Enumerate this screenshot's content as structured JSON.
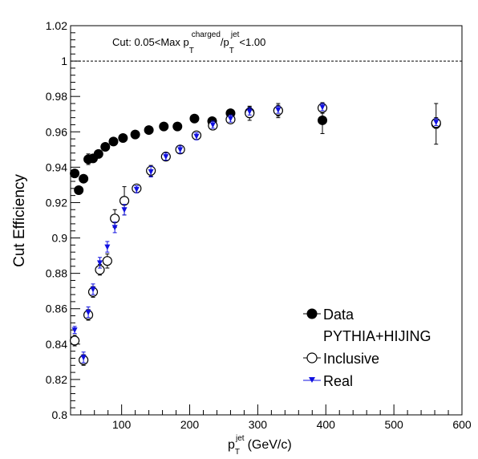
{
  "chart_data": {
    "type": "scatter",
    "xlabel": {
      "main": "p",
      "sup": "jet",
      "sub": "T",
      "units": "(GeV/c)"
    },
    "ylabel": "Cut Efficiency",
    "xlim": [
      25,
      600
    ],
    "ylim": [
      0.8,
      1.02
    ],
    "x_ticks": [
      100,
      200,
      300,
      400,
      500,
      600
    ],
    "y_ticks": [
      0.8,
      0.82,
      0.84,
      0.86,
      0.88,
      0.9,
      0.92,
      0.94,
      0.96,
      0.98,
      1,
      1.02
    ],
    "reference_line": {
      "y": 1.0,
      "style": "dashed"
    },
    "annotation": {
      "prefix": "Cut: 0.05<Max p",
      "sup1": "charged",
      "sub1": "T",
      "slash": "/p",
      "sup2": "jet",
      "sub2": "T",
      "suffix": "<1.00"
    },
    "legend": {
      "placement": "bottom-right",
      "entries": [
        {
          "label": "Data",
          "marker": "filled-circle"
        },
        {
          "label": "PYTHIA+HIJING",
          "marker": "none"
        },
        {
          "label": "Inclusive",
          "marker": "open-circle"
        },
        {
          "label": "Real",
          "marker": "triangle-down"
        }
      ]
    },
    "series": [
      {
        "name": "Data",
        "marker": "filled-circle",
        "color": "#000000",
        "points": [
          {
            "x": 31,
            "y": 0.9365,
            "err": 0.002
          },
          {
            "x": 37,
            "y": 0.927,
            "err": 0.002
          },
          {
            "x": 44,
            "y": 0.9335,
            "err": 0.002
          },
          {
            "x": 51,
            "y": 0.9445,
            "err": 0.003
          },
          {
            "x": 58,
            "y": 0.945,
            "err": 0.002
          },
          {
            "x": 66,
            "y": 0.9475,
            "err": 0.002
          },
          {
            "x": 76,
            "y": 0.9515,
            "err": 0.002
          },
          {
            "x": 88,
            "y": 0.9545,
            "err": 0.002
          },
          {
            "x": 102,
            "y": 0.9565,
            "err": 0.002
          },
          {
            "x": 120,
            "y": 0.9585,
            "err": 0.002
          },
          {
            "x": 140,
            "y": 0.961,
            "err": 0.002
          },
          {
            "x": 162,
            "y": 0.963,
            "err": 0.002
          },
          {
            "x": 182,
            "y": 0.963,
            "err": 0.002
          },
          {
            "x": 207,
            "y": 0.9675,
            "err": 0.002
          },
          {
            "x": 233,
            "y": 0.966,
            "err": 0.002
          },
          {
            "x": 260,
            "y": 0.9705,
            "err": 0.002
          },
          {
            "x": 288,
            "y": 0.971,
            "err": 0.003
          },
          {
            "x": 330,
            "y": 0.972,
            "err": 0.003
          },
          {
            "x": 395,
            "y": 0.9665,
            "err": 0.0075
          },
          {
            "x": 562,
            "y": 0.9645,
            "err": 0.0115
          }
        ]
      },
      {
        "name": "Inclusive",
        "marker": "open-circle",
        "color": "#000000",
        "points": [
          {
            "x": 31,
            "y": 0.842,
            "err": 0.003
          },
          {
            "x": 44,
            "y": 0.831,
            "err": 0.003
          },
          {
            "x": 51,
            "y": 0.8565,
            "err": 0.003
          },
          {
            "x": 58,
            "y": 0.8695,
            "err": 0.003
          },
          {
            "x": 68,
            "y": 0.882,
            "err": 0.003
          },
          {
            "x": 79,
            "y": 0.887,
            "err": 0.004
          },
          {
            "x": 90,
            "y": 0.911,
            "err": 0.005
          },
          {
            "x": 104,
            "y": 0.921,
            "err": 0.008
          },
          {
            "x": 122,
            "y": 0.928,
            "err": 0.002
          },
          {
            "x": 143,
            "y": 0.938,
            "err": 0.003
          },
          {
            "x": 165,
            "y": 0.946,
            "err": 0.002
          },
          {
            "x": 186,
            "y": 0.95,
            "err": 0.002
          },
          {
            "x": 210,
            "y": 0.958,
            "err": 0.002
          },
          {
            "x": 234,
            "y": 0.9635,
            "err": 0.002
          },
          {
            "x": 260,
            "y": 0.967,
            "err": 0.002
          },
          {
            "x": 288,
            "y": 0.9705,
            "err": 0.004
          },
          {
            "x": 330,
            "y": 0.972,
            "err": 0.004
          },
          {
            "x": 395,
            "y": 0.9735,
            "err": 0.003
          },
          {
            "x": 562,
            "y": 0.965,
            "err": 0.003
          }
        ]
      },
      {
        "name": "Real",
        "marker": "triangle-down",
        "color": "#1010e0",
        "points": [
          {
            "x": 31,
            "y": 0.848,
            "err": 0.002
          },
          {
            "x": 44,
            "y": 0.8325,
            "err": 0.003
          },
          {
            "x": 51,
            "y": 0.858,
            "err": 0.003
          },
          {
            "x": 58,
            "y": 0.871,
            "err": 0.003
          },
          {
            "x": 68,
            "y": 0.886,
            "err": 0.003
          },
          {
            "x": 79,
            "y": 0.895,
            "err": 0.003
          },
          {
            "x": 90,
            "y": 0.906,
            "err": 0.003
          },
          {
            "x": 104,
            "y": 0.916,
            "err": 0.003
          },
          {
            "x": 122,
            "y": 0.9275,
            "err": 0.002
          },
          {
            "x": 143,
            "y": 0.9375,
            "err": 0.003
          },
          {
            "x": 165,
            "y": 0.946,
            "err": 0.002
          },
          {
            "x": 186,
            "y": 0.95,
            "err": 0.002
          },
          {
            "x": 210,
            "y": 0.9575,
            "err": 0.002
          },
          {
            "x": 234,
            "y": 0.964,
            "err": 0.002
          },
          {
            "x": 260,
            "y": 0.9675,
            "err": 0.002
          },
          {
            "x": 288,
            "y": 0.9715,
            "err": 0.002
          },
          {
            "x": 330,
            "y": 0.9725,
            "err": 0.002
          },
          {
            "x": 395,
            "y": 0.974,
            "err": 0.002
          },
          {
            "x": 562,
            "y": 0.9655,
            "err": 0.002
          }
        ]
      }
    ]
  }
}
